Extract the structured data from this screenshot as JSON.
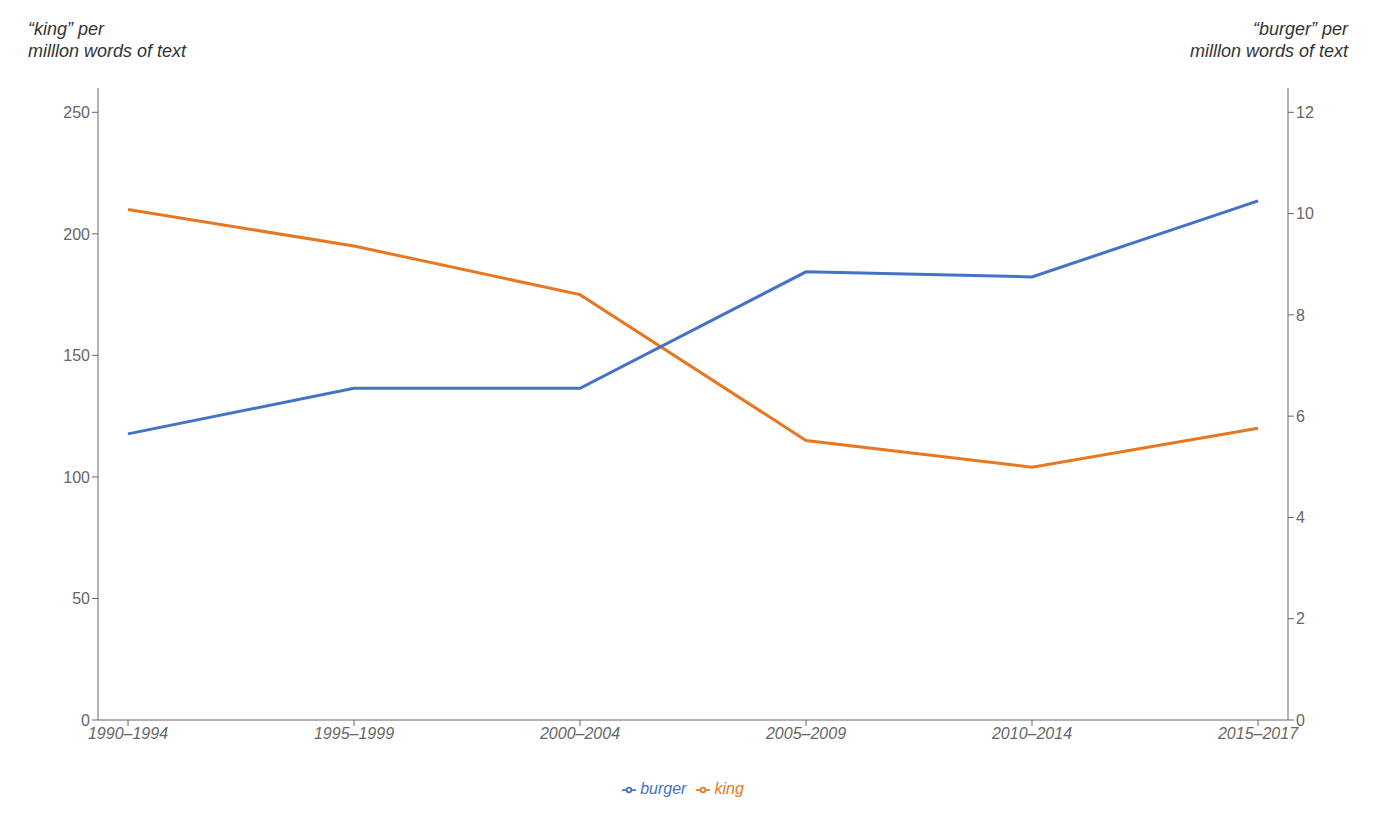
{
  "chart_data": {
    "type": "line",
    "categories": [
      "1990–1994",
      "1995–1999",
      "2000–2004",
      "2005–2009",
      "2010–2014",
      "2015–2017"
    ],
    "series": [
      {
        "name": "king",
        "color": "#E87722",
        "values": [
          210,
          195,
          175,
          115,
          104,
          120
        ]
      },
      {
        "name": "burger",
        "color": "#4472C4",
        "values": [
          5.65,
          6.55,
          6.55,
          8.85,
          8.75,
          10.25
        ],
        "axis": "y2"
      }
    ],
    "ylabel": "“king” per\nmilllon words of text",
    "y2label": "“burger” per\nmilllon words of text",
    "ylim": [
      0,
      260
    ],
    "yticks": [
      0,
      50,
      100,
      150,
      200,
      250
    ],
    "y2lim": [
      0,
      12.48
    ],
    "y2ticks": [
      0,
      2,
      4,
      6,
      8,
      10,
      12
    ],
    "grid": false,
    "legend": "bottom"
  }
}
